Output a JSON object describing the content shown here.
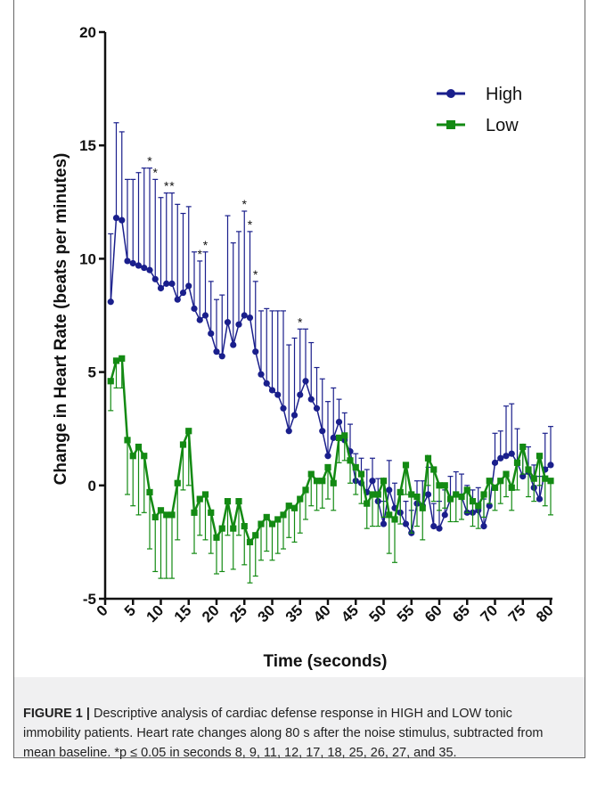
{
  "chart_data": {
    "type": "line",
    "title": "",
    "xlabel": "Time (seconds)",
    "ylabel": "Change in Heart Rate (beats per minutes)",
    "xlim": [
      0,
      80
    ],
    "ylim": [
      -5,
      20
    ],
    "x_ticks": [
      0,
      5,
      10,
      15,
      20,
      25,
      30,
      35,
      40,
      45,
      50,
      55,
      60,
      65,
      70,
      75,
      80
    ],
    "y_ticks": [
      -5,
      0,
      5,
      10,
      15,
      20
    ],
    "legend_position": "top-right",
    "grid": false,
    "error_bars": "upper for High, lower for Low",
    "significance_marker": "*",
    "significant_x": [
      8,
      9,
      11,
      12,
      17,
      18,
      25,
      26,
      27,
      35
    ],
    "x": [
      1,
      2,
      3,
      4,
      5,
      6,
      7,
      8,
      9,
      10,
      11,
      12,
      13,
      14,
      15,
      16,
      17,
      18,
      19,
      20,
      21,
      22,
      23,
      24,
      25,
      26,
      27,
      28,
      29,
      30,
      31,
      32,
      33,
      34,
      35,
      36,
      37,
      38,
      39,
      40,
      41,
      42,
      43,
      44,
      45,
      46,
      47,
      48,
      49,
      50,
      51,
      52,
      53,
      54,
      55,
      56,
      57,
      58,
      59,
      60,
      61,
      62,
      63,
      64,
      65,
      66,
      67,
      68,
      69,
      70,
      71,
      72,
      73,
      74,
      75,
      76,
      77,
      78,
      79,
      80
    ],
    "series": [
      {
        "name": "High",
        "color": "#1a1f8c",
        "marker": "circle",
        "values": [
          8.1,
          11.8,
          11.7,
          9.9,
          9.8,
          9.7,
          9.6,
          9.5,
          9.1,
          8.7,
          8.9,
          8.9,
          8.2,
          8.5,
          8.8,
          7.8,
          7.3,
          7.5,
          6.7,
          5.9,
          5.7,
          7.2,
          6.2,
          7.1,
          7.5,
          7.4,
          5.9,
          4.9,
          4.5,
          4.2,
          4.0,
          3.4,
          2.4,
          3.1,
          4.0,
          4.6,
          3.8,
          3.4,
          2.4,
          1.3,
          2.1,
          2.8,
          2.0,
          1.5,
          0.2,
          0.1,
          -0.3,
          0.2,
          -0.7,
          -1.7,
          -0.2,
          -1.0,
          -1.2,
          -1.7,
          -2.1,
          -0.8,
          -0.9,
          -0.4,
          -1.8,
          -1.9,
          -1.3,
          -0.6,
          -0.4,
          -0.5,
          -1.2,
          -1.2,
          -1.1,
          -1.8,
          -0.9,
          1.0,
          1.2,
          1.3,
          1.4,
          1.0,
          0.4,
          0.6,
          -0.1,
          -0.6,
          0.7,
          0.9
        ],
        "error": [
          3.0,
          4.2,
          3.9,
          3.6,
          3.7,
          4.1,
          4.4,
          4.5,
          4.4,
          4.0,
          4.0,
          4.0,
          4.2,
          3.5,
          3.5,
          2.5,
          2.6,
          2.8,
          2.3,
          2.3,
          2.7,
          4.7,
          4.5,
          4.1,
          4.6,
          3.8,
          3.1,
          2.8,
          3.3,
          3.5,
          3.7,
          4.3,
          3.8,
          3.4,
          2.9,
          2.3,
          2.5,
          1.8,
          2.3,
          2.4,
          2.2,
          1.0,
          1.2,
          1.2,
          1.2,
          1.1,
          1.0,
          1.0,
          1.0,
          1.0,
          1.3,
          1.1,
          1.0,
          1.0,
          1.0,
          1.0,
          1.1,
          1.2,
          1.0,
          1.2,
          1.1,
          1.0,
          1.0,
          1.0,
          1.2,
          1.0,
          1.0,
          1.2,
          1.2,
          1.3,
          1.2,
          2.2,
          2.2,
          1.5,
          1.3,
          1.1,
          1.0,
          1.0,
          1.6,
          1.7
        ]
      },
      {
        "name": "Low",
        "color": "#138a13",
        "marker": "square",
        "values": [
          4.6,
          5.5,
          5.6,
          2.0,
          1.3,
          1.7,
          1.3,
          -0.3,
          -1.4,
          -1.1,
          -1.3,
          -1.3,
          0.1,
          1.8,
          2.4,
          -1.2,
          -0.6,
          -0.4,
          -1.2,
          -2.3,
          -1.9,
          -0.7,
          -1.9,
          -0.7,
          -1.8,
          -2.5,
          -2.2,
          -1.7,
          -1.4,
          -1.7,
          -1.5,
          -1.3,
          -0.9,
          -1.0,
          -0.6,
          -0.2,
          0.5,
          0.2,
          0.2,
          0.8,
          0.1,
          2.1,
          2.2,
          1.1,
          0.8,
          0.5,
          -0.8,
          -0.4,
          -0.4,
          0.2,
          -1.3,
          -1.5,
          -0.3,
          0.9,
          -0.4,
          -0.5,
          -1.0,
          1.2,
          0.7,
          0.0,
          0.0,
          -0.6,
          -0.4,
          -0.5,
          -0.2,
          -0.7,
          -0.9,
          -0.4,
          0.2,
          -0.1,
          0.2,
          0.5,
          -0.1,
          1.0,
          1.7,
          0.7,
          0.3,
          1.3,
          0.3,
          0.2
        ],
        "error": [
          1.3,
          1.2,
          1.3,
          2.4,
          2.2,
          3.0,
          2.5,
          2.5,
          2.4,
          3.0,
          2.8,
          2.8,
          2.5,
          2.0,
          2.4,
          1.8,
          1.6,
          2.0,
          1.8,
          1.6,
          1.9,
          1.5,
          1.8,
          1.5,
          1.7,
          1.8,
          1.8,
          1.6,
          1.5,
          1.6,
          1.5,
          1.5,
          1.4,
          1.5,
          1.5,
          1.3,
          1.4,
          1.3,
          1.2,
          1.4,
          1.2,
          1.1,
          1.1,
          1.0,
          1.2,
          1.3,
          1.1,
          1.4,
          1.4,
          1.6,
          1.7,
          1.9,
          1.4,
          1.3,
          1.7,
          1.3,
          1.4,
          1.2,
          1.4,
          1.1,
          1.0,
          1.0,
          1.2,
          1.0,
          1.0,
          1.1,
          1.0,
          1.0,
          1.0,
          1.0,
          1.0,
          1.0,
          1.0,
          1.2,
          1.2,
          1.2,
          1.0,
          1.3,
          1.2,
          1.5
        ]
      }
    ]
  },
  "caption": {
    "label": "FIGURE 1 |",
    "text": "Descriptive analysis of cardiac defense response in HIGH and LOW tonic immobility patients. Heart rate changes along 80 s after the noise stimulus, subtracted from mean baseline. *p ≤ 0.05 in seconds 8, 9, 11, 12, 17, 18, 25, 26, 27, and 35."
  }
}
